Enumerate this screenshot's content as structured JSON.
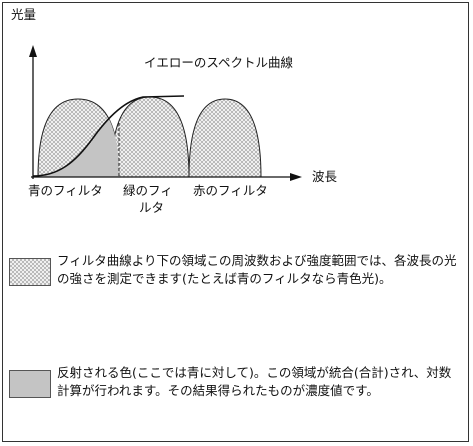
{
  "y_axis_label": "光量",
  "x_axis_label": "波長",
  "curve_label": "イエローのスペクトル曲線",
  "filters": [
    {
      "label": "青のフィルタ"
    },
    {
      "label_line1": "緑のフィ",
      "label_line2": "ルタ"
    },
    {
      "label": "赤のフィルタ"
    }
  ],
  "legend": [
    {
      "pattern": "checker-fill",
      "text": "フィルタ曲線より下の領域この周波数および強度範囲では、各波長の光の強さを測定できます(たとえば青のフィルタなら青色光)。"
    },
    {
      "pattern": "solid-gray-fill",
      "text": "反射される色(ここでは青に対して)。この領域が統合(合計)され、対数計算が行われます。その結果得られたものが濃度値です。"
    }
  ],
  "colors": {
    "filter_fill": "#dcdcdc",
    "reflected_fill": "#c4c4c4",
    "line": "#111111"
  }
}
